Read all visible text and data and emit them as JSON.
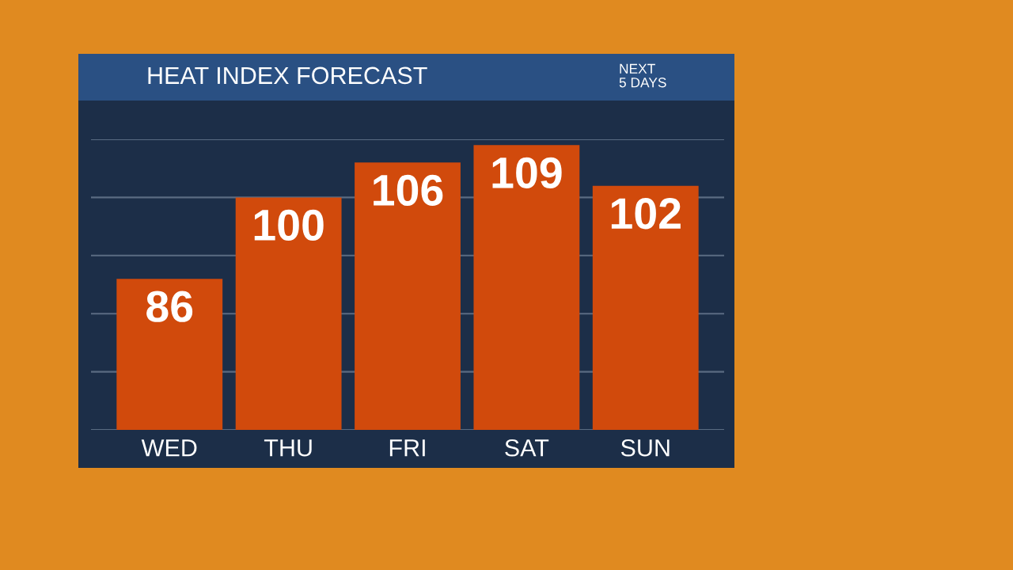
{
  "chart_data": {
    "type": "bar",
    "title": "HEAT INDEX FORECAST",
    "annotations": [
      "NEXT\n5 DAYS"
    ],
    "categories": [
      "WED",
      "THU",
      "FRI",
      "SAT",
      "SUN"
    ],
    "values": [
      86,
      100,
      106,
      109,
      102
    ],
    "color": "#d14a0c",
    "data_labels": true,
    "ylim": [
      60,
      110
    ],
    "yticks": [
      {
        "value": 60,
        "label": null
      },
      {
        "value": 70,
        "label": null
      },
      {
        "value": 80,
        "label": null
      },
      {
        "value": 90,
        "label": null
      },
      {
        "value": 100,
        "label": null
      },
      {
        "value": 110,
        "label": null
      }
    ],
    "grid": "y",
    "tick_labels": "x"
  }
}
